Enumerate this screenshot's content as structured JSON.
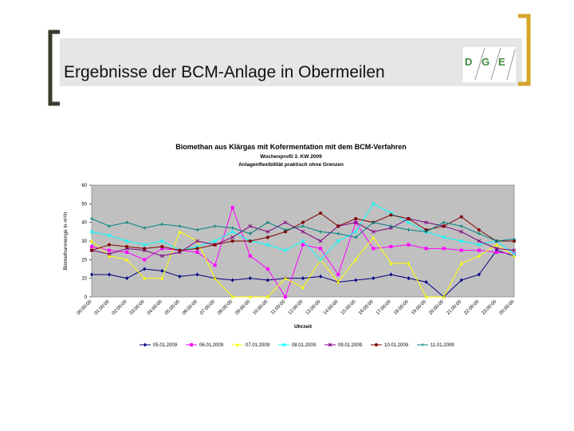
{
  "slide": {
    "title": "Ergebnisse der BCM-Anlage in Obermeilen"
  },
  "logo": {
    "letters": [
      "D",
      "G",
      "E"
    ]
  },
  "chart_data": {
    "type": "line",
    "title": "Biomethan aus Klärgas mit Kofermentation mit dem BCM-Verfahren",
    "subtitle": "Wochenprofil 3. KW 2009",
    "annotation": "Anlagenflexibilität praktisch ohne Grenzen",
    "y_label": "Biomethanmenge in m³/h",
    "x_label": "Uhrzeit",
    "categories": [
      "00:00:00",
      "01:00:00",
      "02:00:00",
      "03:00:00",
      "04:00:00",
      "05:00:00",
      "06:00:00",
      "07:00:00",
      "08:00:00",
      "09:00:00",
      "10:00:00",
      "11:00:00",
      "12:00:00",
      "13:00:00",
      "14:00:00",
      "15:00:00",
      "16:00:00",
      "17:00:00",
      "18:00:00",
      "19:00:00",
      "20:00:00",
      "21:00:00",
      "22:00:00",
      "23:00:00",
      "00:00:00"
    ],
    "ylim": [
      0,
      60
    ],
    "yticks": [
      0,
      10,
      20,
      30,
      40,
      50,
      60
    ],
    "grid": false,
    "plot_background": "#c0c0c0",
    "series": [
      {
        "name": "05.01.2009",
        "color": "#000080",
        "marker": "diamond",
        "values": [
          12,
          12,
          10,
          15,
          14,
          11,
          12,
          10,
          9,
          10,
          9,
          10,
          10,
          11,
          8,
          9,
          10,
          12,
          10,
          8,
          0,
          9,
          12,
          25,
          22
        ]
      },
      {
        "name": "06.01.2009",
        "color": "#ff00ff",
        "marker": "square",
        "values": [
          27,
          25,
          24,
          20,
          26,
          25,
          24,
          17,
          48,
          22,
          15,
          0,
          28,
          26,
          12,
          40,
          26,
          27,
          28,
          26,
          26,
          25,
          25,
          24,
          23
        ]
      },
      {
        "name": "07.01.2009",
        "color": "#ffff00",
        "marker": "triangle",
        "values": [
          30,
          22,
          20,
          10,
          10,
          35,
          30,
          10,
          0,
          0,
          0,
          10,
          5,
          20,
          8,
          20,
          32,
          18,
          18,
          0,
          0,
          18,
          22,
          28,
          22
        ]
      },
      {
        "name": "08.01.2009",
        "color": "#00ffff",
        "marker": "cross",
        "values": [
          35,
          33,
          30,
          28,
          30,
          25,
          27,
          30,
          35,
          30,
          28,
          25,
          30,
          20,
          30,
          35,
          50,
          45,
          40,
          35,
          32,
          30,
          28,
          30,
          23
        ]
      },
      {
        "name": "09.01.2009",
        "color": "#800080",
        "marker": "cross",
        "values": [
          25,
          23,
          26,
          25,
          22,
          24,
          30,
          28,
          32,
          38,
          35,
          40,
          35,
          30,
          38,
          40,
          35,
          37,
          42,
          40,
          38,
          35,
          30,
          26,
          25
        ]
      },
      {
        "name": "10.01.2009",
        "color": "#800000",
        "marker": "circle",
        "values": [
          25,
          28,
          27,
          26,
          27,
          25,
          26,
          28,
          30,
          30,
          32,
          35,
          40,
          45,
          38,
          42,
          40,
          44,
          42,
          36,
          38,
          43,
          36,
          30,
          30
        ]
      },
      {
        "name": "11.01.2009",
        "color": "#008080",
        "marker": "plus",
        "values": [
          42,
          38,
          40,
          37,
          39,
          38,
          36,
          38,
          37,
          34,
          40,
          36,
          38,
          35,
          34,
          32,
          40,
          38,
          36,
          35,
          40,
          38,
          34,
          30,
          31
        ]
      }
    ]
  }
}
